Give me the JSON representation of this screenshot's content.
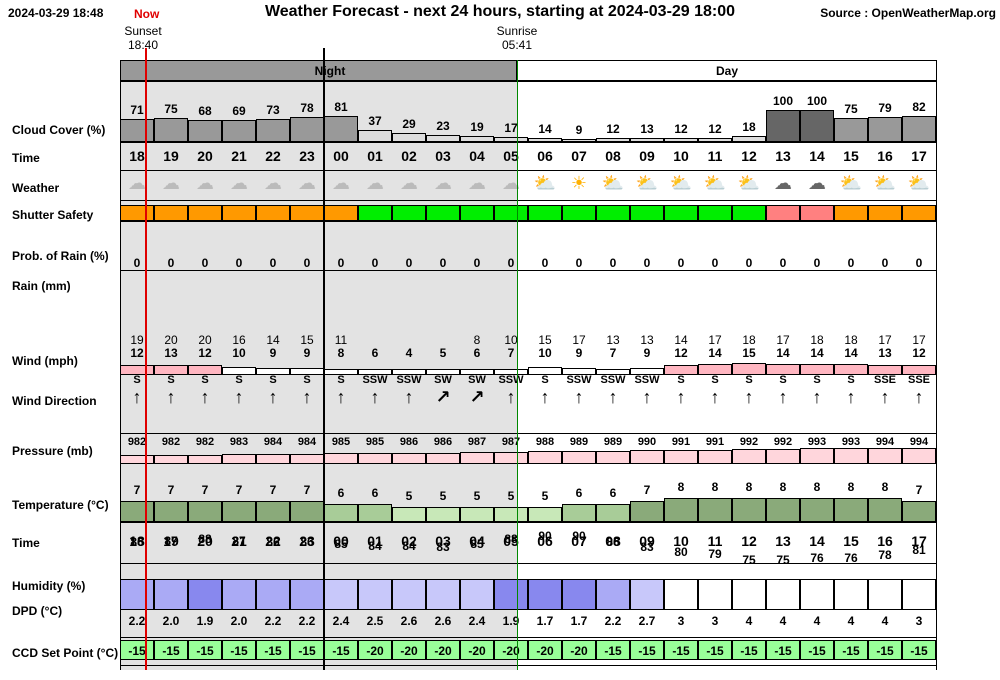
{
  "header": {
    "datetime": "2024-03-29 18:48",
    "title": "Weather Forecast - next 24 hours, starting at 2024-03-29 18:00",
    "source": "Source : OpenWeatherMap.org",
    "now_label": "Now",
    "sunset": "Sunset",
    "sunset_time": "18:40",
    "sunrise": "Sunrise",
    "sunrise_time": "05:41",
    "night_label": "Night",
    "day_label": "Day"
  },
  "labels": {
    "cloud": "Cloud Cover (%)",
    "time": "Time",
    "weather": "Weather",
    "shutter": "Shutter Safety",
    "rainprob": "Prob. of Rain (%)",
    "rain": "Rain (mm)",
    "wind": "Wind (mph)",
    "winddir": "Wind Direction",
    "pressure": "Pressure (mb)",
    "temp": "Temperature (°C)",
    "time2": "Time",
    "humidity": "Humidity (%)",
    "dpd": "DPD (°C)",
    "ccd": "CCD Set Point (°C)"
  },
  "hours": [
    "18",
    "19",
    "20",
    "21",
    "22",
    "23",
    "00",
    "01",
    "02",
    "03",
    "04",
    "05",
    "06",
    "07",
    "08",
    "09",
    "10",
    "11",
    "12",
    "13",
    "14",
    "15",
    "16",
    "17"
  ],
  "cloud": [
    71,
    75,
    68,
    69,
    73,
    78,
    81,
    37,
    29,
    23,
    19,
    17,
    14,
    9,
    12,
    13,
    12,
    12,
    18,
    100,
    100,
    75,
    79,
    82
  ],
  "weather_icons": [
    "partly-cloudy-moon",
    "cloudy-moon",
    "cloudy-moon",
    "cloudy-moon",
    "cloudy-moon",
    "cloudy-moon",
    "cloudy-moon",
    "partly-cloudy-moon",
    "partly-cloudy-moon",
    "partly-cloudy-moon",
    "partly-cloudy-moon",
    "partly-cloudy-moon",
    "partly-cloudy-sun",
    "sun",
    "partly-cloudy-sun",
    "partly-cloudy-sun",
    "partly-cloudy-sun",
    "partly-cloudy-sun",
    "partly-cloudy-sun",
    "overcast",
    "overcast",
    "partly-cloudy-sun",
    "partly-cloudy-sun",
    "partly-cloudy-sun"
  ],
  "shutter": [
    "orange",
    "orange",
    "orange",
    "orange",
    "orange",
    "orange",
    "orange",
    "green",
    "green",
    "green",
    "green",
    "green",
    "green",
    "green",
    "green",
    "green",
    "green",
    "green",
    "green",
    "red",
    "red",
    "orange",
    "orange",
    "orange"
  ],
  "shutter_colors": {
    "orange": "#ff9900",
    "green": "#00ee00",
    "red": "#ff8080"
  },
  "rainprob": [
    0,
    0,
    0,
    0,
    0,
    0,
    0,
    0,
    0,
    0,
    0,
    0,
    0,
    0,
    0,
    0,
    0,
    0,
    0,
    0,
    0,
    0,
    0,
    0
  ],
  "wind_gust": [
    19,
    20,
    20,
    16,
    14,
    15,
    11,
    "",
    "",
    "",
    8,
    10,
    15,
    17,
    13,
    13,
    14,
    17,
    18,
    17,
    18,
    18,
    17,
    17
  ],
  "wind_speed": [
    12,
    13,
    12,
    10,
    9,
    9,
    8,
    6,
    4,
    5,
    6,
    7,
    10,
    9,
    7,
    9,
    12,
    14,
    15,
    14,
    14,
    14,
    13,
    12
  ],
  "wind_dir": [
    "S",
    "S",
    "S",
    "S",
    "S",
    "S",
    "S",
    "SSW",
    "SSW",
    "SW",
    "SW",
    "SSW",
    "S",
    "SSW",
    "SSW",
    "SSW",
    "S",
    "S",
    "S",
    "S",
    "S",
    "S",
    "SSE",
    "SSE"
  ],
  "pressure": [
    982,
    982,
    982,
    983,
    984,
    984,
    985,
    985,
    986,
    986,
    987,
    987,
    988,
    989,
    989,
    990,
    991,
    991,
    992,
    992,
    993,
    993,
    994,
    994
  ],
  "temperature": [
    7,
    7,
    7,
    7,
    7,
    7,
    6,
    6,
    5,
    5,
    5,
    5,
    5,
    6,
    6,
    7,
    8,
    8,
    8,
    8,
    8,
    8,
    8,
    7
  ],
  "humidity": [
    86,
    87,
    88,
    87,
    86,
    86,
    85,
    84,
    84,
    83,
    85,
    88,
    90,
    90,
    86,
    83,
    80,
    79,
    75,
    75,
    76,
    76,
    78,
    81
  ],
  "dpd": [
    "2.2",
    "2.0",
    "1.9",
    "2.0",
    "2.2",
    "2.2",
    "2.4",
    "2.5",
    "2.6",
    "2.6",
    "2.4",
    "1.9",
    "1.7",
    "1.7",
    "2.2",
    "2.7",
    "3",
    "3",
    "4",
    "4",
    "4",
    "4",
    "4",
    "3"
  ],
  "ccd": [
    -15,
    -15,
    -15,
    -15,
    -15,
    -15,
    -15,
    -20,
    -20,
    -20,
    -20,
    -20,
    -20,
    -20,
    -15,
    -15,
    -15,
    -15,
    -15,
    -15,
    -15,
    -15,
    -15,
    -15
  ]
}
